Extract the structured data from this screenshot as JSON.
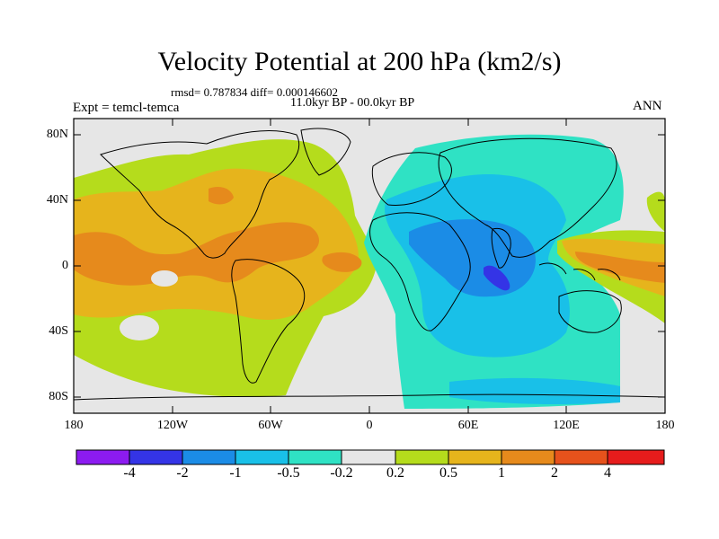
{
  "header": {
    "title": "Velocity Potential at 200 hPa (km2/s)",
    "stats": "rmsd= 0.787834 diff= 0.000146602",
    "period": "11.0kyr BP - 00.0kyr BP",
    "experiment": "Expt = temcl-temca",
    "season": "ANN"
  },
  "axes": {
    "lat_ticks": [
      "80N",
      "40N",
      "0",
      "40S",
      "80S"
    ],
    "lon_ticks": [
      "180",
      "120W",
      "60W",
      "0",
      "60E",
      "120E",
      "180"
    ]
  },
  "colorbar": {
    "labels": [
      "-4",
      "-2",
      "-1",
      "-0.5",
      "-0.2",
      "0.2",
      "0.5",
      "1",
      "2",
      "4"
    ],
    "colors": [
      "#8c1bf0",
      "#3434e6",
      "#1b8ce6",
      "#19c0e8",
      "#2fe2c4",
      "#e6e6e6",
      "#b5dc1c",
      "#e6b41c",
      "#e68a1c",
      "#e6521c",
      "#e61c1c"
    ]
  },
  "fill_colors": {
    "land_outline": "#000000",
    "neutral": "#e6e6e6"
  }
}
